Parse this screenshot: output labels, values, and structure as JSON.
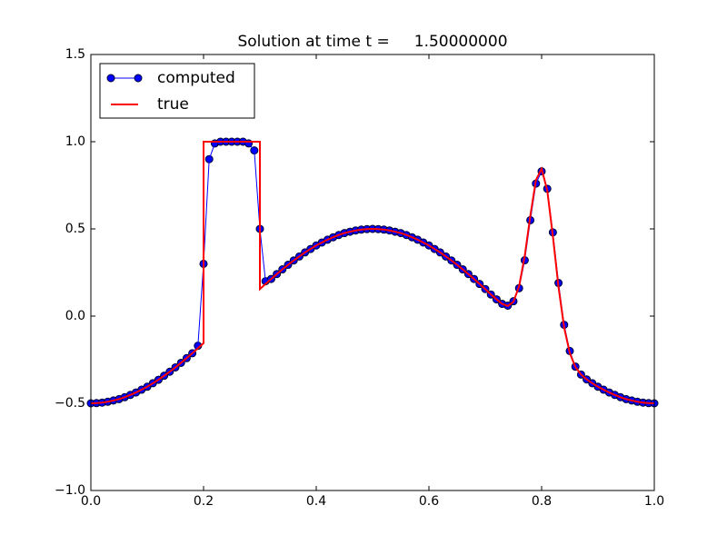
{
  "chart_data": {
    "type": "line",
    "title": "Solution at time t =     1.50000000",
    "xlim": [
      0,
      1
    ],
    "ylim": [
      -1,
      1.5
    ],
    "xticks": [
      {
        "value": 0,
        "label": "0.0"
      },
      0.2,
      0.4,
      0.6,
      0.8,
      {
        "value": 1,
        "label": "1.0"
      }
    ],
    "yticks": [
      {
        "value": -1,
        "label": "−1.0"
      },
      {
        "value": -0.5,
        "label": "−0.5"
      },
      {
        "value": 0,
        "label": "0.0"
      },
      0.5,
      {
        "value": 1,
        "label": "1.0"
      },
      1.5
    ],
    "legend": "upper left",
    "series": [
      {
        "name": "computed",
        "color": "#0000ff",
        "marker": "circle",
        "x": [
          0,
          0.01,
          0.02,
          0.03,
          0.04,
          0.05,
          0.06,
          0.07,
          0.08,
          0.09,
          0.1,
          0.11,
          0.12,
          0.13,
          0.14,
          0.15,
          0.16,
          0.17,
          0.18,
          0.19,
          0.2,
          0.21,
          0.22,
          0.23,
          0.24,
          0.25,
          0.26,
          0.27,
          0.28,
          0.29,
          0.3,
          0.31,
          0.32,
          0.33,
          0.34,
          0.35,
          0.36,
          0.37,
          0.38,
          0.39,
          0.4,
          0.41,
          0.42,
          0.43,
          0.44,
          0.45,
          0.46,
          0.47,
          0.48,
          0.49,
          0.5,
          0.51,
          0.52,
          0.53,
          0.54,
          0.55,
          0.56,
          0.57,
          0.58,
          0.59,
          0.6,
          0.61,
          0.62,
          0.63,
          0.64,
          0.65,
          0.66,
          0.67,
          0.68,
          0.69,
          0.7,
          0.71,
          0.72,
          0.73,
          0.74,
          0.75,
          0.76,
          0.77,
          0.78,
          0.79,
          0.8,
          0.81,
          0.82,
          0.83,
          0.84,
          0.85,
          0.86,
          0.87,
          0.88,
          0.89,
          0.9,
          0.91,
          0.92,
          0.93,
          0.94,
          0.95,
          0.96,
          0.97,
          0.98,
          0.99,
          1
        ],
        "values": [
          -0.5,
          -0.499,
          -0.496,
          -0.491,
          -0.484,
          -0.476,
          -0.465,
          -0.452,
          -0.438,
          -0.422,
          -0.405,
          -0.385,
          -0.365,
          -0.342,
          -0.319,
          -0.294,
          -0.268,
          -0.241,
          -0.213,
          -0.17,
          0.3,
          0.9,
          0.99,
          1,
          1,
          1,
          1,
          1,
          0.99,
          0.95,
          0.5,
          0.2,
          0.213,
          0.241,
          0.268,
          0.294,
          0.319,
          0.342,
          0.365,
          0.385,
          0.405,
          0.422,
          0.438,
          0.452,
          0.465,
          0.476,
          0.484,
          0.491,
          0.496,
          0.499,
          0.5,
          0.499,
          0.496,
          0.491,
          0.484,
          0.476,
          0.465,
          0.452,
          0.438,
          0.422,
          0.405,
          0.385,
          0.365,
          0.342,
          0.319,
          0.294,
          0.268,
          0.241,
          0.213,
          0.184,
          0.155,
          0.124,
          0.096,
          0.07,
          0.06,
          0.085,
          0.16,
          0.32,
          0.55,
          0.76,
          0.83,
          0.73,
          0.48,
          0.19,
          -0.05,
          -0.2,
          -0.29,
          -0.335,
          -0.363,
          -0.385,
          -0.405,
          -0.422,
          -0.438,
          -0.452,
          -0.465,
          -0.476,
          -0.484,
          -0.491,
          -0.496,
          -0.499,
          -0.5
        ]
      },
      {
        "name": "true",
        "color": "#ff0000",
        "x": [
          0,
          0.01,
          0.02,
          0.03,
          0.04,
          0.05,
          0.06,
          0.07,
          0.08,
          0.09,
          0.1,
          0.11,
          0.12,
          0.13,
          0.14,
          0.15,
          0.16,
          0.17,
          0.18,
          0.19,
          0.2,
          0.2,
          0.21,
          0.22,
          0.23,
          0.24,
          0.25,
          0.26,
          0.27,
          0.28,
          0.29,
          0.3,
          0.3,
          0.31,
          0.32,
          0.33,
          0.34,
          0.35,
          0.36,
          0.37,
          0.38,
          0.39,
          0.4,
          0.41,
          0.42,
          0.43,
          0.44,
          0.45,
          0.46,
          0.47,
          0.48,
          0.49,
          0.5,
          0.51,
          0.52,
          0.53,
          0.54,
          0.55,
          0.56,
          0.57,
          0.58,
          0.59,
          0.6,
          0.61,
          0.62,
          0.63,
          0.64,
          0.65,
          0.66,
          0.67,
          0.68,
          0.69,
          0.7,
          0.71,
          0.72,
          0.73,
          0.74,
          0.75,
          0.76,
          0.77,
          0.78,
          0.79,
          0.8,
          0.81,
          0.82,
          0.83,
          0.84,
          0.85,
          0.86,
          0.87,
          0.88,
          0.89,
          0.9,
          0.91,
          0.92,
          0.93,
          0.94,
          0.95,
          0.96,
          0.97,
          0.98,
          0.99,
          1
        ],
        "values": [
          -0.5,
          -0.499,
          -0.496,
          -0.491,
          -0.484,
          -0.476,
          -0.465,
          -0.452,
          -0.438,
          -0.422,
          -0.405,
          -0.385,
          -0.365,
          -0.342,
          -0.319,
          -0.294,
          -0.268,
          -0.241,
          -0.213,
          -0.184,
          -0.155,
          1,
          1,
          1,
          1,
          1,
          1,
          1,
          1,
          1,
          1,
          1,
          0.155,
          0.184,
          0.213,
          0.241,
          0.268,
          0.294,
          0.319,
          0.342,
          0.365,
          0.385,
          0.405,
          0.422,
          0.438,
          0.452,
          0.465,
          0.476,
          0.484,
          0.491,
          0.496,
          0.499,
          0.5,
          0.499,
          0.496,
          0.491,
          0.484,
          0.476,
          0.465,
          0.452,
          0.438,
          0.422,
          0.405,
          0.385,
          0.365,
          0.342,
          0.319,
          0.294,
          0.268,
          0.241,
          0.213,
          0.184,
          0.155,
          0.124,
          0.096,
          0.07,
          0.058,
          0.082,
          0.171,
          0.344,
          0.576,
          0.781,
          0.845,
          0.721,
          0.457,
          0.166,
          -0.066,
          -0.212,
          -0.292,
          -0.335,
          -0.363,
          -0.385,
          -0.405,
          -0.422,
          -0.438,
          -0.452,
          -0.465,
          -0.476,
          -0.484,
          -0.491,
          -0.496,
          -0.499,
          -0.5
        ]
      }
    ]
  }
}
